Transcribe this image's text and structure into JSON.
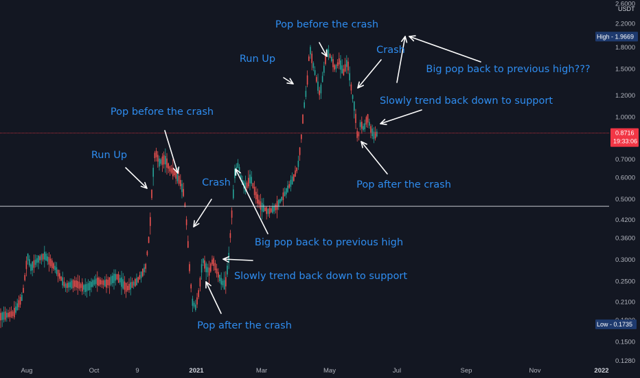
{
  "chart_data": {
    "type": "candlestick",
    "currency": "USDT",
    "y_scale": "log",
    "ylim": [
      0.128,
      2.6
    ],
    "y_ticks": [
      "2.6000",
      "2.2000",
      "1.8000",
      "1.5000",
      "1.2000",
      "1.0000",
      "0.8500",
      "0.7000",
      "0.6000",
      "0.5000",
      "0.4200",
      "0.3600",
      "0.3000",
      "0.2500",
      "0.2100",
      "0.1800",
      "0.1500",
      "0.1280"
    ],
    "x_ticks": [
      {
        "label": "Aug",
        "bold": false
      },
      {
        "label": "Oct",
        "bold": false
      },
      {
        "label": "9",
        "bold": false
      },
      {
        "label": "2021",
        "bold": true
      },
      {
        "label": "Mar",
        "bold": false
      },
      {
        "label": "May",
        "bold": false
      },
      {
        "label": "Jul",
        "bold": false
      },
      {
        "label": "Sep",
        "bold": false
      },
      {
        "label": "Nov",
        "bold": false
      },
      {
        "label": "2022",
        "bold": true
      }
    ],
    "high_label": {
      "text": "High - 1.9669",
      "value": 1.9669
    },
    "low_label": {
      "text": "Low - 0.1735",
      "value": 0.1735
    },
    "last_price": {
      "value": 0.8716,
      "text": "0.8716",
      "countdown": "19:33:06"
    },
    "support_level": 0.47,
    "price_path": [
      [
        0,
        0.185
      ],
      [
        20,
        0.19
      ],
      [
        33,
        0.22
      ],
      [
        40,
        0.31
      ],
      [
        45,
        0.28
      ],
      [
        55,
        0.3
      ],
      [
        65,
        0.31
      ],
      [
        80,
        0.28
      ],
      [
        95,
        0.24
      ],
      [
        110,
        0.245
      ],
      [
        125,
        0.235
      ],
      [
        140,
        0.25
      ],
      [
        155,
        0.245
      ],
      [
        170,
        0.26
      ],
      [
        185,
        0.235
      ],
      [
        200,
        0.25
      ],
      [
        212,
        0.28
      ],
      [
        218,
        0.38
      ],
      [
        222,
        0.58
      ],
      [
        226,
        0.75
      ],
      [
        232,
        0.68
      ],
      [
        240,
        0.7
      ],
      [
        248,
        0.64
      ],
      [
        255,
        0.62
      ],
      [
        262,
        0.58
      ],
      [
        268,
        0.52
      ],
      [
        272,
        0.4
      ],
      [
        276,
        0.28
      ],
      [
        280,
        0.21
      ],
      [
        285,
        0.2
      ],
      [
        290,
        0.23
      ],
      [
        295,
        0.3
      ],
      [
        300,
        0.28
      ],
      [
        305,
        0.27
      ],
      [
        310,
        0.3
      ],
      [
        316,
        0.27
      ],
      [
        322,
        0.25
      ],
      [
        328,
        0.24
      ],
      [
        333,
        0.3
      ],
      [
        337,
        0.42
      ],
      [
        342,
        0.62
      ],
      [
        347,
        0.67
      ],
      [
        352,
        0.58
      ],
      [
        358,
        0.55
      ],
      [
        365,
        0.6
      ],
      [
        372,
        0.52
      ],
      [
        380,
        0.47
      ],
      [
        390,
        0.45
      ],
      [
        400,
        0.46
      ],
      [
        410,
        0.5
      ],
      [
        420,
        0.55
      ],
      [
        428,
        0.6
      ],
      [
        434,
        0.66
      ],
      [
        438,
        0.8
      ],
      [
        442,
        1.05
      ],
      [
        447,
        1.3
      ],
      [
        451,
        1.8
      ],
      [
        455,
        1.6
      ],
      [
        460,
        1.4
      ],
      [
        466,
        1.2
      ],
      [
        471,
        1.45
      ],
      [
        476,
        1.75
      ],
      [
        482,
        1.65
      ],
      [
        488,
        1.5
      ],
      [
        494,
        1.6
      ],
      [
        500,
        1.45
      ],
      [
        506,
        1.6
      ],
      [
        512,
        1.25
      ],
      [
        517,
        1.05
      ],
      [
        521,
        0.82
      ],
      [
        525,
        0.95
      ],
      [
        530,
        0.9
      ],
      [
        535,
        1.0
      ],
      [
        540,
        0.9
      ],
      [
        545,
        0.85
      ],
      [
        550,
        0.87
      ]
    ],
    "annotations": [
      {
        "text": "Run Up",
        "x": 159,
        "y": 230,
        "anchor": "middle"
      },
      {
        "text": "Pop before the crash",
        "x": 236,
        "y": 167,
        "anchor": "middle"
      },
      {
        "text": "Crash",
        "x": 315,
        "y": 270,
        "anchor": "middle"
      },
      {
        "text": "Big pop back to previous high",
        "x": 479,
        "y": 357,
        "anchor": "middle"
      },
      {
        "text": "Slowly trend back down to support",
        "x": 467,
        "y": 406,
        "anchor": "middle"
      },
      {
        "text": "Pop after the crash",
        "x": 356,
        "y": 478,
        "anchor": "middle"
      },
      {
        "text": "Run Up",
        "x": 375,
        "y": 90,
        "anchor": "middle"
      },
      {
        "text": "Pop before the crash",
        "x": 476,
        "y": 40,
        "anchor": "middle"
      },
      {
        "text": "Crash",
        "x": 569,
        "y": 77,
        "anchor": "middle"
      },
      {
        "text": "Big pop back to previous high???",
        "x": 740,
        "y": 105,
        "anchor": "middle"
      },
      {
        "text": "Slowly trend back down to support",
        "x": 679,
        "y": 151,
        "anchor": "middle"
      },
      {
        "text": "Pop after the crash",
        "x": 588,
        "y": 273,
        "anchor": "middle"
      }
    ],
    "arrows": [
      {
        "from": [
          183,
          244
        ],
        "to": [
          214,
          274
        ]
      },
      {
        "from": [
          240,
          190
        ],
        "to": [
          259,
          252
        ]
      },
      {
        "from": [
          308,
          290
        ],
        "to": [
          282,
          330
        ]
      },
      {
        "from": [
          390,
          340
        ],
        "to": [
          343,
          246
        ]
      },
      {
        "from": [
          368,
          379
        ],
        "to": [
          325,
          377
        ]
      },
      {
        "from": [
          322,
          456
        ],
        "to": [
          300,
          410
        ]
      },
      {
        "from": [
          413,
          113
        ],
        "to": [
          427,
          122
        ]
      },
      {
        "from": [
          465,
          62
        ],
        "to": [
          476,
          82
        ]
      },
      {
        "from": [
          555,
          87
        ],
        "to": [
          521,
          128
        ]
      },
      {
        "from": [
          578,
          120
        ],
        "to": [
          590,
          53
        ]
      },
      {
        "from": [
          700,
          90
        ],
        "to": [
          596,
          53
        ]
      },
      {
        "from": [
          614,
          160
        ],
        "to": [
          554,
          180
        ]
      },
      {
        "from": [
          564,
          253
        ],
        "to": [
          526,
          206
        ]
      }
    ],
    "colors": {
      "background": "#131722",
      "up": "#26a69a",
      "down": "#ef5350",
      "annotation": "#2f8df0",
      "arrow": "#ffffff",
      "badge": "#1e3a6e",
      "last_price_badge": "#f23645"
    }
  }
}
